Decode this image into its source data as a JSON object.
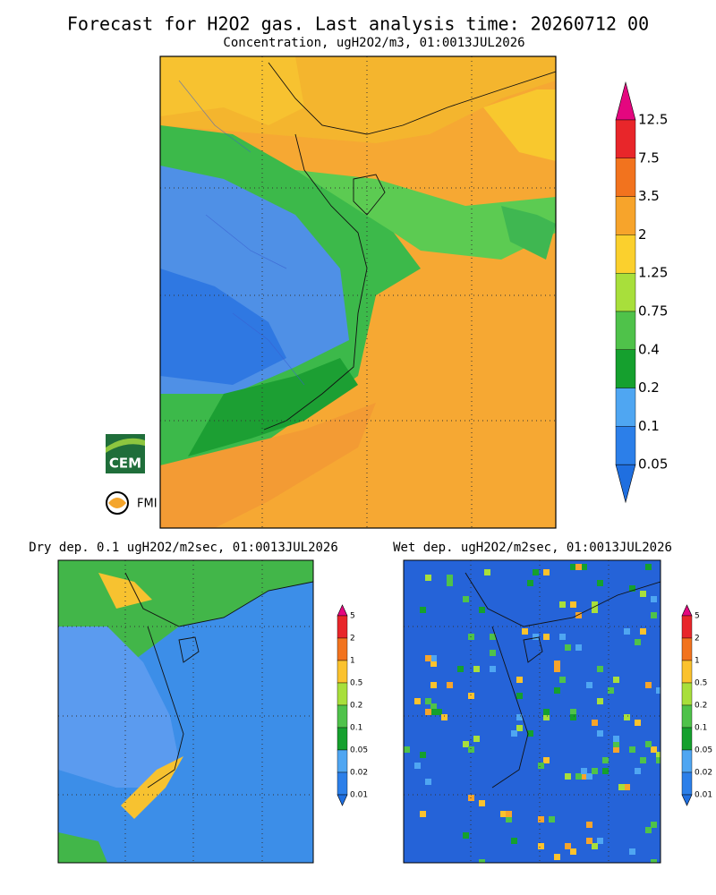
{
  "header": {
    "title": "Forecast for H2O2 gas. Last analysis time: 20260712 00"
  },
  "main_map": {
    "subtitle": "Concentration, ugH2O2/m3, 01:0013JUL2026",
    "colorbar": {
      "labels": [
        "12.5",
        "7.5",
        "3.5",
        "2",
        "1.25",
        "0.75",
        "0.4",
        "0.2",
        "0.1",
        "0.05"
      ],
      "colors": [
        "#e4067f",
        "#e8262a",
        "#f2731e",
        "#f7a42b",
        "#fbd02d",
        "#a8df3b",
        "#4fc24a",
        "#15a02e",
        "#4fa6f2",
        "#2c7fe9",
        "#1f6fe0"
      ]
    }
  },
  "dry_map": {
    "subtitle": "Dry dep. 0.1 ugH2O2/m2sec, 01:0013JUL2026",
    "colorbar": {
      "labels": [
        "5",
        "2",
        "1",
        "0.5",
        "0.2",
        "0.1",
        "0.05",
        "0.02",
        "0.01"
      ],
      "colors": [
        "#e4067f",
        "#e8262a",
        "#f2731e",
        "#fbc22d",
        "#a8df3b",
        "#4fc24a",
        "#15a02e",
        "#4fa6f2",
        "#2c7fe9",
        "#1f6fe0"
      ]
    }
  },
  "wet_map": {
    "subtitle": "Wet dep. ugH2O2/m2sec, 01:0013JUL2026",
    "colorbar": {
      "labels": [
        "5",
        "2",
        "1",
        "0.5",
        "0.2",
        "0.1",
        "0.05",
        "0.02",
        "0.01"
      ],
      "colors": [
        "#e4067f",
        "#e8262a",
        "#f2731e",
        "#fbc22d",
        "#a8df3b",
        "#4fc24a",
        "#15a02e",
        "#4fa6f2",
        "#2c7fe9",
        "#1f6fe0"
      ]
    }
  },
  "logos": [
    "CEM",
    "FMI"
  ]
}
